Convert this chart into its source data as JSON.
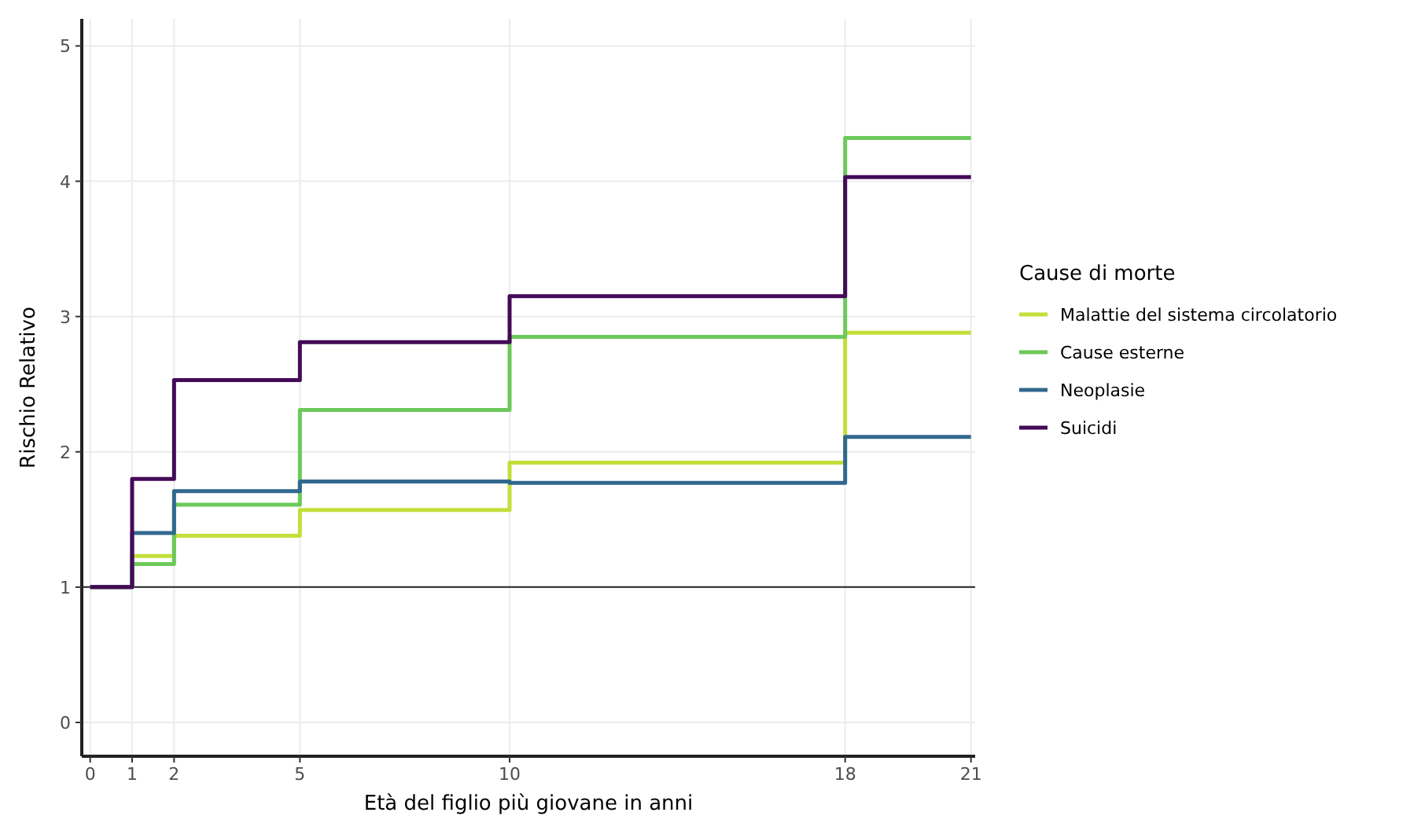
{
  "chart_data": {
    "type": "step",
    "xlabel": "Età del figlio più giovane in anni",
    "ylabel": "Rischio Relativo",
    "legend_title": "Cause di morte",
    "x": [
      0,
      1,
      2,
      5,
      10,
      18,
      21
    ],
    "series": [
      {
        "name": "Malattie del sistema circolatorio",
        "color": "#c2df3a",
        "values": [
          1,
          1.23,
          1.38,
          1.57,
          1.92,
          2.88,
          2.88
        ]
      },
      {
        "name": "Cause esterne",
        "color": "#6cc95a",
        "values": [
          1,
          1.17,
          1.61,
          2.31,
          2.85,
          4.32,
          4.32
        ]
      },
      {
        "name": "Neoplasie",
        "color": "#31688e",
        "values": [
          1,
          1.4,
          1.71,
          1.78,
          1.77,
          2.11,
          2.11
        ]
      },
      {
        "name": "Suicidi",
        "color": "#440a57",
        "values": [
          1,
          1.8,
          2.53,
          2.81,
          3.15,
          4.03,
          4.03
        ]
      }
    ],
    "xlim": [
      -0.2,
      21.1
    ],
    "ylim": [
      -0.25,
      5.2
    ],
    "xticks": [
      0,
      1,
      2,
      5,
      10,
      18,
      21
    ],
    "yticks": [
      0,
      1,
      2,
      3,
      4,
      5
    ],
    "ref_lines": [
      {
        "axis": "y",
        "value": 1,
        "color": "#222222"
      }
    ],
    "grid": true,
    "legend": "right",
    "line_style": "solid"
  }
}
